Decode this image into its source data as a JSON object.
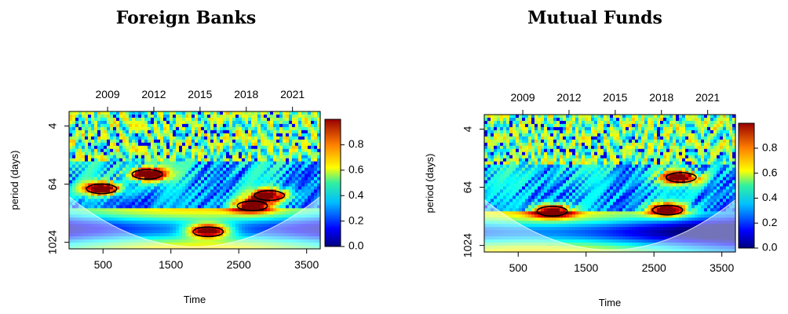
{
  "chart_data": [
    {
      "type": "heatmap",
      "title": "Foreign Banks",
      "xlabel": "Time",
      "ylabel": "period (days)",
      "xlim": [
        0,
        3700
      ],
      "x_ticks": [
        500,
        1500,
        2500,
        3500
      ],
      "x_tick_labels": [
        "500",
        "1500",
        "2500",
        "3500"
      ],
      "top_ticks": [
        2009,
        2012,
        2015,
        2018,
        2021
      ],
      "top_tick_labels": [
        "2009",
        "2012",
        "2015",
        "2018",
        "2021"
      ],
      "y_scale": "log2",
      "ylim": [
        2,
        1400
      ],
      "y_ticks": [
        4,
        64,
        1024
      ],
      "y_tick_labels": [
        "4",
        "64",
        "1024"
      ],
      "colorbar": {
        "min": 0.0,
        "max": 1.0,
        "ticks": [
          0.0,
          0.2,
          0.4,
          0.6,
          0.8
        ],
        "tick_labels": [
          "0.0",
          "0.2",
          "0.4",
          "0.6",
          "0.8"
        ]
      },
      "significant_regions": [
        {
          "time": 480,
          "period": 80,
          "power": 0.9
        },
        {
          "time": 1150,
          "period": 40,
          "power": 0.9
        },
        {
          "time": 2950,
          "period": 110,
          "power": 0.8
        },
        {
          "time": 2700,
          "period": 180,
          "power": 0.85
        },
        {
          "time": 2050,
          "period": 620,
          "power": 0.9
        }
      ]
    },
    {
      "type": "heatmap",
      "title": "Mutual Funds",
      "xlabel": "Time",
      "ylabel": "period (days)",
      "xlim": [
        0,
        3700
      ],
      "x_ticks": [
        500,
        1500,
        2500,
        3500
      ],
      "x_tick_labels": [
        "500",
        "1500",
        "2500",
        "3500"
      ],
      "top_ticks": [
        2009,
        2012,
        2015,
        2018,
        2021
      ],
      "top_tick_labels": [
        "2009",
        "2012",
        "2015",
        "2018",
        "2021"
      ],
      "y_scale": "log2",
      "ylim": [
        2,
        1400
      ],
      "y_ticks": [
        4,
        64,
        1024
      ],
      "y_tick_labels": [
        "4",
        "64",
        "1024"
      ],
      "colorbar": {
        "min": 0.0,
        "max": 1.0,
        "ticks": [
          0.0,
          0.2,
          0.4,
          0.6,
          0.8
        ],
        "tick_labels": [
          "0.0",
          "0.2",
          "0.4",
          "0.6",
          "0.8"
        ]
      },
      "significant_regions": [
        {
          "time": 1000,
          "period": 200,
          "power": 0.85
        },
        {
          "time": 2700,
          "period": 190,
          "power": 0.85
        },
        {
          "time": 2900,
          "period": 40,
          "power": 0.8
        }
      ]
    }
  ]
}
